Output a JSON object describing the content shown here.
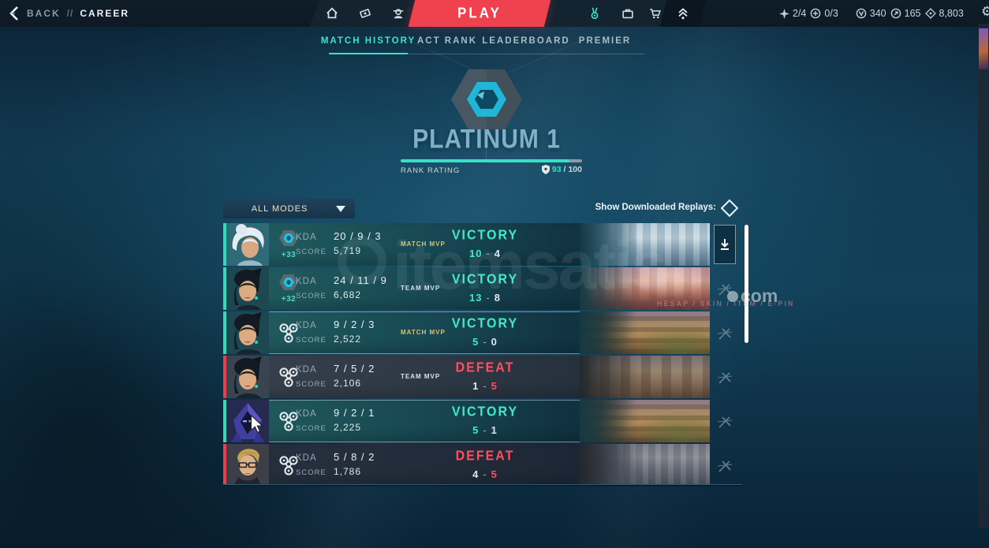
{
  "topbar": {
    "back_label": "BACK",
    "breadcrumb_separator": "//",
    "page_label": "CAREER",
    "play_label": "PLAY",
    "currencies": [
      {
        "icon": "daily-rewards-icon",
        "value": "2/4"
      },
      {
        "icon": "weekly-missions-icon",
        "value": "0/3"
      },
      {
        "icon": "valorant-points-icon",
        "value": "340"
      },
      {
        "icon": "radianite-points-icon",
        "value": "165"
      },
      {
        "icon": "kingdom-credits-icon",
        "value": "8,803"
      }
    ]
  },
  "tabs": [
    {
      "label": "MATCH HISTORY",
      "active": true
    },
    {
      "label": "ACT RANK",
      "active": false
    },
    {
      "label": "LEADERBOARD",
      "active": false
    },
    {
      "label": "PREMIER",
      "active": false
    }
  ],
  "rank": {
    "tier_name": "PLATINUM 1",
    "bar_label": "RANK RATING",
    "rating_current": "93",
    "rating_separator": "/",
    "rating_max": "100",
    "progress_pct": 93
  },
  "filters": {
    "mode_dropdown_value": "ALL MODES",
    "replays_toggle_label": "Show Downloaded Replays:"
  },
  "list_ui": {
    "kda_label": "KDA",
    "score_label": "SCORE",
    "score_dash": "-"
  },
  "matches": [
    {
      "agent": "jett",
      "mode": "competitive",
      "rr_change": "+33",
      "kda": "20 / 9 / 3",
      "score": "5,719",
      "mvp_badge": "MATCH MVP",
      "result": "VICTORY",
      "team_score": "10",
      "enemy_score": "4",
      "outcome": "victory",
      "replay_action": "download"
    },
    {
      "agent": "sage",
      "mode": "competitive",
      "rr_change": "+32",
      "kda": "24 / 11 / 9",
      "score": "6,682",
      "mvp_badge": "TEAM MVP",
      "result": "VICTORY",
      "team_score": "13",
      "enemy_score": "8",
      "outcome": "victory",
      "replay_action": "unavailable"
    },
    {
      "agent": "sage",
      "mode": "spike-rush",
      "kda": "9 / 2 / 3",
      "score": "2,522",
      "mvp_badge": "MATCH MVP",
      "result": "VICTORY",
      "team_score": "5",
      "enemy_score": "0",
      "outcome": "victory",
      "replay_action": "unavailable"
    },
    {
      "agent": "sage",
      "mode": "spike-rush",
      "kda": "7 / 5 / 2",
      "score": "2,106",
      "mvp_badge": "TEAM MVP",
      "result": "DEFEAT",
      "team_score": "1",
      "enemy_score": "5",
      "outcome": "defeat",
      "replay_action": "unavailable"
    },
    {
      "agent": "omen",
      "mode": "spike-rush",
      "kda": "9 / 2 / 1",
      "score": "2,225",
      "mvp_badge": "",
      "result": "VICTORY",
      "team_score": "5",
      "enemy_score": "1",
      "outcome": "victory",
      "replay_action": "unavailable"
    },
    {
      "agent": "chamber",
      "mode": "spike-rush",
      "kda": "5 / 8 / 2",
      "score": "1,786",
      "mvp_badge": "",
      "result": "DEFEAT",
      "team_score": "4",
      "enemy_score": "5",
      "outcome": "defeat",
      "replay_action": "unavailable"
    }
  ],
  "watermark": {
    "main_text": "itemsatis",
    "suffix_text": "com",
    "sub_text": "HESAP / SKIN / ITEM / E-PIN"
  },
  "colors": {
    "accent_teal": "#3ae8c2",
    "defeat_red": "#ff4655",
    "play_red": "#ef414e",
    "mvp_gold": "#d9c271",
    "rank_text": "#7fb0c9"
  }
}
